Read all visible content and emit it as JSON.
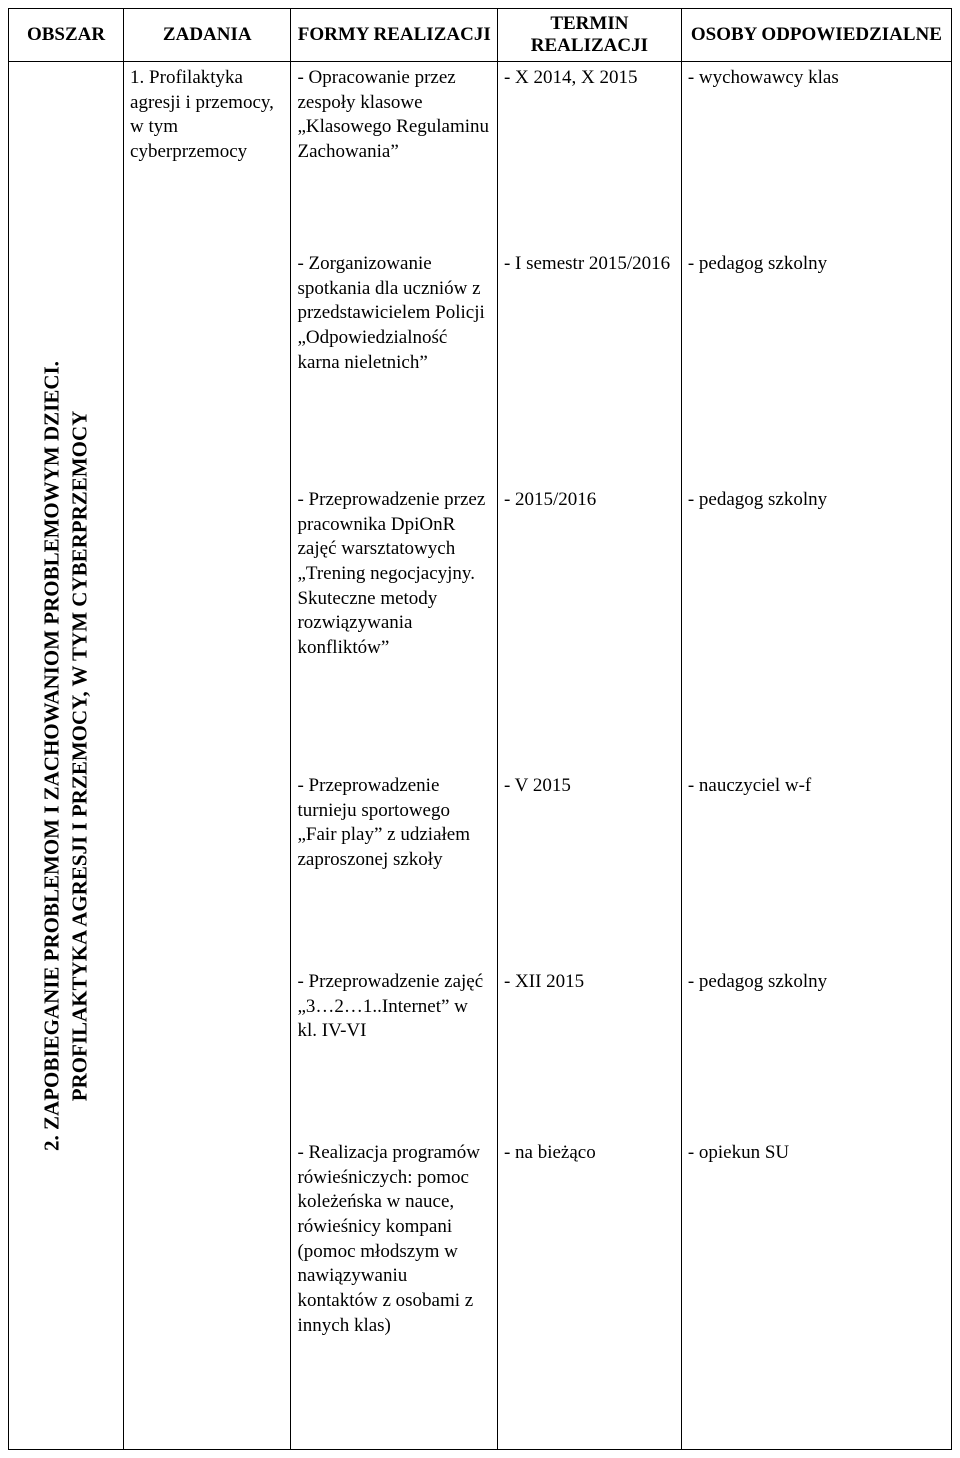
{
  "headers": {
    "obszar": "OBSZAR",
    "zadania": "ZADANIA",
    "formy": "FORMY REALIZACJI",
    "termin": "TERMIN REALIZACJI",
    "osoby": "OSOBY ODPOWIEDZIALNE"
  },
  "obszar": {
    "line1": "2.  ZAPOBIEGANIE PROBLEMOM I ZACHOWANIOM PROBLEMOWYM DZIECI.",
    "line2": "PROFILAKTYKA AGRESJI I PRZEMOCY, W TYM CYBERPRZEMOCY"
  },
  "zadanie": "1. Profilaktyka agresji i przemocy, w tym cyberprzemocy",
  "rows": [
    {
      "formy": "- Opracowanie przez zespoły klasowe „Klasowego Regulaminu Zachowania”",
      "termin": "- X 2014, X 2015",
      "terminJustify": true,
      "osoby": "- wychowawcy klas"
    },
    {
      "formy": "- Zorganizowanie spotkania dla uczniów z przedstawicielem Policji „Odpowiedzialność karna nieletnich”",
      "termin": "- I semestr 2015/2016",
      "osoby": "- pedagog szkolny"
    },
    {
      "formy": "- Przeprowadzenie przez pracownika DpiOnR zajęć warsztatowych „Trening negocjacyjny. Skuteczne metody rozwiązywania konfliktów”",
      "termin": "- 2015/2016",
      "osoby": "- pedagog szkolny"
    },
    {
      "formy": "- Przeprowadzenie turnieju sportowego „Fair play” z udziałem zaproszonej szkoły",
      "termin": "- V 2015",
      "osoby": "- nauczyciel w-f"
    },
    {
      "formy": "- Przeprowadzenie zajęć „3…2…1..Internet” w kl. IV-VI",
      "termin": "- XII 2015",
      "osoby": "- pedagog szkolny"
    },
    {
      "formy": "- Realizacja programów rówieśniczych: pomoc koleżeńska w nauce, rówieśnicy kompani (pomoc młodszym w nawiązywaniu kontaktów z osobami z innych klas)",
      "termin": "- na bieżąco",
      "osoby": "- opiekun SU"
    }
  ]
}
